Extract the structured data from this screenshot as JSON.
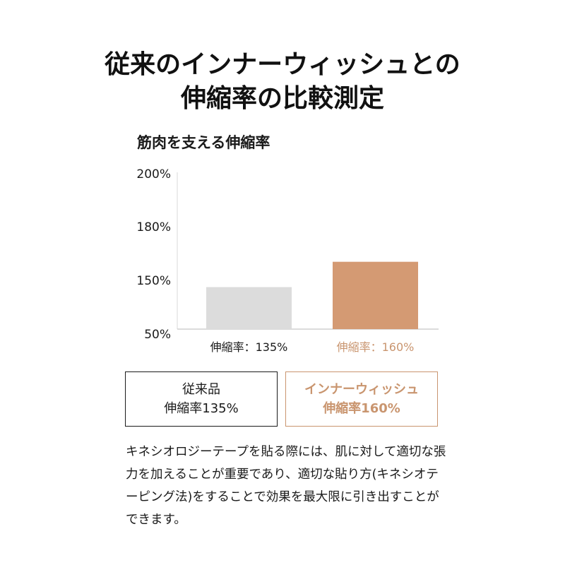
{
  "title": {
    "line1": "従来のインナーウィッシュとの",
    "line2": "伸縮率の比較測定"
  },
  "chart_data": {
    "type": "bar",
    "title": "筋肉を支える伸縮率",
    "y_ticks": [
      "200%",
      "180%",
      "150%",
      "50%"
    ],
    "ylim": [
      50,
      200
    ],
    "grid": false,
    "categories": [
      "従来品",
      "インナーウィッシュ"
    ],
    "values": [
      135,
      160
    ],
    "bar_labels": [
      "伸縮率：135%",
      "伸縮率：160%"
    ],
    "colors": [
      "#dcdcdc",
      "#d49a73"
    ],
    "label_colors": [
      "#1a1a1a",
      "#c9956f"
    ]
  },
  "legend": {
    "old": {
      "line1": "従来品",
      "line2": "伸縮率135%"
    },
    "new": {
      "line1": "インナーウィッシュ",
      "line2": "伸縮率160%"
    }
  },
  "description": "キネシオロジーテープを貼る際には、肌に対して適切な張力を加えることが重要であり、適切な貼り方(キネシオテーピング法)をすることで効果を最大限に引き出すことができます。"
}
